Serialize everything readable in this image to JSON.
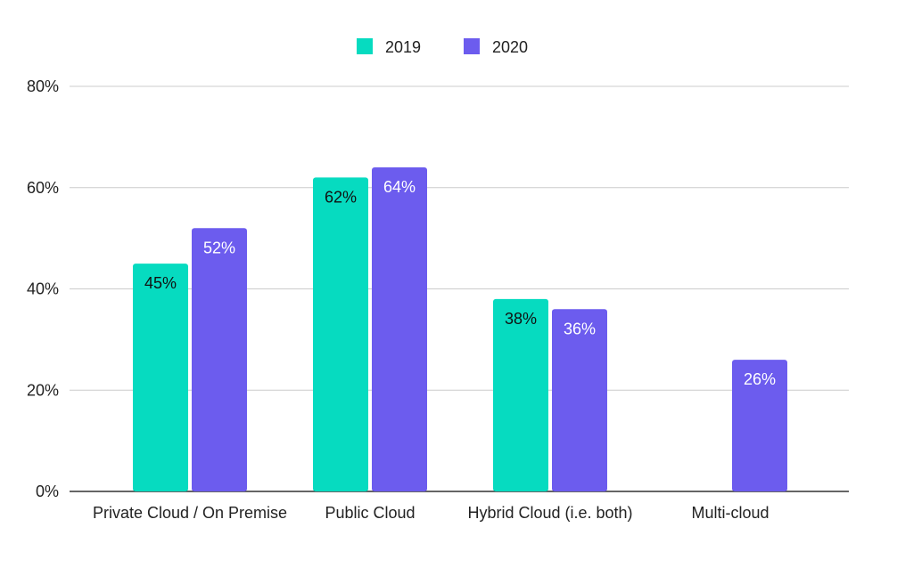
{
  "chart_data": {
    "type": "bar",
    "categories": [
      "Private Cloud / On Premise",
      "Public Cloud",
      "Hybrid Cloud (i.e. both)",
      "Multi-cloud"
    ],
    "series": [
      {
        "name": "2019",
        "color": "#06dbc0",
        "values": [
          45,
          62,
          38,
          null
        ],
        "labels": [
          "45%",
          "62%",
          "38%",
          ""
        ]
      },
      {
        "name": "2020",
        "color": "#6c5cee",
        "values": [
          52,
          64,
          36,
          26
        ],
        "labels": [
          "52%",
          "64%",
          "36%",
          "26%"
        ]
      }
    ],
    "ylim": [
      0,
      80
    ],
    "yticks": [
      0,
      20,
      40,
      60,
      80
    ],
    "ytick_labels": [
      "0%",
      "20%",
      "40%",
      "60%",
      "80%"
    ],
    "legend_position": "top-center",
    "grid": true
  }
}
